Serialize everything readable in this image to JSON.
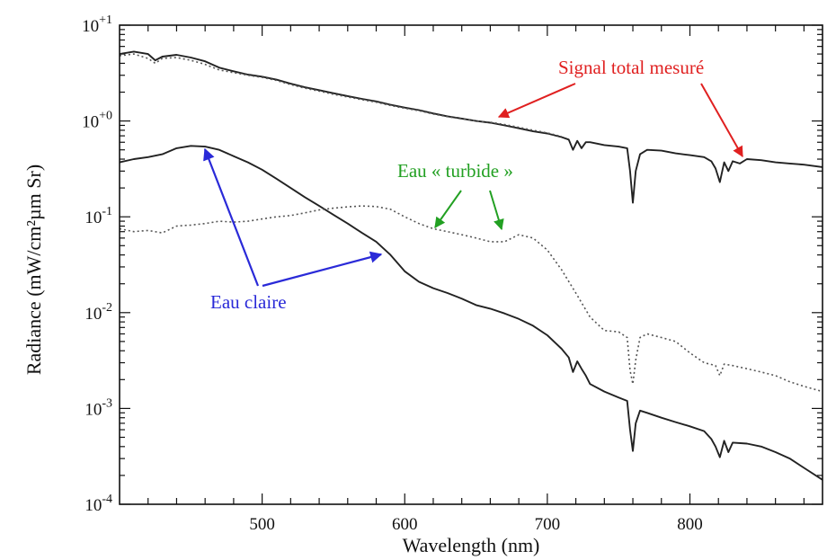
{
  "chart_data": {
    "type": "line",
    "title": "",
    "xlabel": "Wavelength (nm)",
    "ylabel": "Radiance  (mW/cm²µm Sr)",
    "xlim": [
      400,
      893
    ],
    "ylim": [
      0.0001,
      10
    ],
    "yscale": "log",
    "grid": false,
    "x_tick_labels": [
      {
        "value": 500,
        "text": "500"
      },
      {
        "value": 600,
        "text": "600"
      },
      {
        "value": 700,
        "text": "700"
      },
      {
        "value": 800,
        "text": "800"
      }
    ],
    "y_tick_labels": [
      {
        "value": 10,
        "base": "10",
        "exp": "+1"
      },
      {
        "value": 1,
        "base": "10",
        "exp": "+0"
      },
      {
        "value": 0.1,
        "base": "10",
        "exp": "-1"
      },
      {
        "value": 0.01,
        "base": "10",
        "exp": "-2"
      },
      {
        "value": 0.001,
        "base": "10",
        "exp": "-3"
      },
      {
        "value": 0.0001,
        "base": "10",
        "exp": "-4"
      }
    ],
    "series": [
      {
        "key": "total_solid",
        "style": "solid",
        "color": "#222222",
        "points": [
          [
            400,
            5.0
          ],
          [
            410,
            5.3
          ],
          [
            420,
            5.0
          ],
          [
            425,
            4.3
          ],
          [
            430,
            4.7
          ],
          [
            440,
            4.9
          ],
          [
            450,
            4.6
          ],
          [
            460,
            4.2
          ],
          [
            470,
            3.6
          ],
          [
            480,
            3.3
          ],
          [
            490,
            3.05
          ],
          [
            500,
            2.9
          ],
          [
            510,
            2.7
          ],
          [
            520,
            2.45
          ],
          [
            530,
            2.25
          ],
          [
            540,
            2.1
          ],
          [
            550,
            1.95
          ],
          [
            560,
            1.82
          ],
          [
            570,
            1.7
          ],
          [
            580,
            1.6
          ],
          [
            590,
            1.48
          ],
          [
            600,
            1.38
          ],
          [
            610,
            1.3
          ],
          [
            620,
            1.2
          ],
          [
            630,
            1.12
          ],
          [
            640,
            1.06
          ],
          [
            650,
            1.0
          ],
          [
            660,
            0.96
          ],
          [
            670,
            0.9
          ],
          [
            680,
            0.84
          ],
          [
            690,
            0.78
          ],
          [
            700,
            0.74
          ],
          [
            710,
            0.68
          ],
          [
            715,
            0.64
          ],
          [
            718,
            0.5
          ],
          [
            721,
            0.62
          ],
          [
            724,
            0.52
          ],
          [
            727,
            0.6
          ],
          [
            730,
            0.6
          ],
          [
            740,
            0.56
          ],
          [
            750,
            0.54
          ],
          [
            756,
            0.52
          ],
          [
            758,
            0.3
          ],
          [
            760,
            0.14
          ],
          [
            762,
            0.3
          ],
          [
            765,
            0.45
          ],
          [
            770,
            0.5
          ],
          [
            780,
            0.49
          ],
          [
            790,
            0.46
          ],
          [
            800,
            0.44
          ],
          [
            810,
            0.42
          ],
          [
            815,
            0.38
          ],
          [
            818,
            0.32
          ],
          [
            821,
            0.23
          ],
          [
            824,
            0.37
          ],
          [
            827,
            0.3
          ],
          [
            830,
            0.38
          ],
          [
            835,
            0.36
          ],
          [
            840,
            0.4
          ],
          [
            850,
            0.39
          ],
          [
            860,
            0.37
          ],
          [
            870,
            0.36
          ],
          [
            880,
            0.35
          ],
          [
            893,
            0.33
          ]
        ]
      },
      {
        "key": "total_dotted",
        "style": "dotted",
        "color": "#555555",
        "points": [
          [
            400,
            4.8
          ],
          [
            410,
            5.0
          ],
          [
            420,
            4.5
          ],
          [
            425,
            4.0
          ],
          [
            430,
            4.5
          ],
          [
            440,
            4.6
          ],
          [
            450,
            4.3
          ],
          [
            460,
            3.9
          ],
          [
            470,
            3.4
          ],
          [
            480,
            3.2
          ],
          [
            490,
            3.0
          ],
          [
            500,
            2.85
          ],
          [
            510,
            2.65
          ],
          [
            520,
            2.4
          ],
          [
            530,
            2.2
          ],
          [
            540,
            2.05
          ],
          [
            550,
            1.9
          ],
          [
            560,
            1.78
          ],
          [
            570,
            1.67
          ],
          [
            580,
            1.57
          ],
          [
            590,
            1.45
          ],
          [
            600,
            1.36
          ],
          [
            610,
            1.28
          ],
          [
            620,
            1.18
          ],
          [
            630,
            1.11
          ],
          [
            640,
            1.05
          ],
          [
            650,
            1.0
          ],
          [
            660,
            0.97
          ],
          [
            670,
            0.92
          ],
          [
            680,
            0.86
          ],
          [
            690,
            0.8
          ],
          [
            700,
            0.75
          ],
          [
            710,
            0.69
          ]
        ]
      },
      {
        "key": "clear_water",
        "style": "solid",
        "color": "#222222",
        "points": [
          [
            400,
            0.37
          ],
          [
            410,
            0.4
          ],
          [
            420,
            0.42
          ],
          [
            430,
            0.45
          ],
          [
            440,
            0.52
          ],
          [
            450,
            0.55
          ],
          [
            460,
            0.54
          ],
          [
            470,
            0.5
          ],
          [
            480,
            0.43
          ],
          [
            490,
            0.37
          ],
          [
            500,
            0.31
          ],
          [
            510,
            0.25
          ],
          [
            520,
            0.2
          ],
          [
            530,
            0.16
          ],
          [
            540,
            0.13
          ],
          [
            550,
            0.105
          ],
          [
            560,
            0.085
          ],
          [
            570,
            0.068
          ],
          [
            580,
            0.055
          ],
          [
            590,
            0.04
          ],
          [
            600,
            0.027
          ],
          [
            610,
            0.021
          ],
          [
            620,
            0.018
          ],
          [
            630,
            0.016
          ],
          [
            640,
            0.014
          ],
          [
            650,
            0.012
          ],
          [
            660,
            0.011
          ],
          [
            670,
            0.0098
          ],
          [
            680,
            0.0086
          ],
          [
            690,
            0.0073
          ],
          [
            700,
            0.0058
          ],
          [
            710,
            0.0042
          ],
          [
            715,
            0.0034
          ],
          [
            718,
            0.0024
          ],
          [
            721,
            0.0031
          ],
          [
            724,
            0.0026
          ],
          [
            727,
            0.0022
          ],
          [
            730,
            0.0018
          ],
          [
            740,
            0.0015
          ],
          [
            750,
            0.0013
          ],
          [
            756,
            0.0012
          ],
          [
            758,
            0.0006
          ],
          [
            760,
            0.00036
          ],
          [
            762,
            0.0007
          ],
          [
            765,
            0.00095
          ],
          [
            770,
            0.0009
          ],
          [
            780,
            0.0008
          ],
          [
            790,
            0.00072
          ],
          [
            800,
            0.00065
          ],
          [
            810,
            0.00058
          ],
          [
            815,
            0.00048
          ],
          [
            818,
            0.0004
          ],
          [
            821,
            0.00031
          ],
          [
            824,
            0.00046
          ],
          [
            827,
            0.00035
          ],
          [
            830,
            0.00044
          ],
          [
            840,
            0.00043
          ],
          [
            850,
            0.0004
          ],
          [
            860,
            0.00035
          ],
          [
            870,
            0.0003
          ],
          [
            880,
            0.00024
          ],
          [
            893,
            0.00018
          ]
        ]
      },
      {
        "key": "turbid_water",
        "style": "dotted",
        "color": "#555555",
        "points": [
          [
            400,
            0.075
          ],
          [
            410,
            0.07
          ],
          [
            420,
            0.072
          ],
          [
            430,
            0.068
          ],
          [
            440,
            0.08
          ],
          [
            450,
            0.082
          ],
          [
            460,
            0.085
          ],
          [
            470,
            0.09
          ],
          [
            480,
            0.088
          ],
          [
            490,
            0.09
          ],
          [
            500,
            0.095
          ],
          [
            510,
            0.1
          ],
          [
            520,
            0.103
          ],
          [
            530,
            0.11
          ],
          [
            540,
            0.118
          ],
          [
            550,
            0.123
          ],
          [
            560,
            0.127
          ],
          [
            570,
            0.13
          ],
          [
            580,
            0.128
          ],
          [
            590,
            0.12
          ],
          [
            600,
            0.1
          ],
          [
            610,
            0.085
          ],
          [
            620,
            0.075
          ],
          [
            630,
            0.07
          ],
          [
            640,
            0.065
          ],
          [
            650,
            0.06
          ],
          [
            660,
            0.055
          ],
          [
            670,
            0.055
          ],
          [
            680,
            0.065
          ],
          [
            690,
            0.06
          ],
          [
            700,
            0.045
          ],
          [
            710,
            0.028
          ],
          [
            720,
            0.016
          ],
          [
            730,
            0.009
          ],
          [
            740,
            0.0065
          ],
          [
            750,
            0.0063
          ],
          [
            756,
            0.0055
          ],
          [
            758,
            0.0025
          ],
          [
            760,
            0.0018
          ],
          [
            762,
            0.0032
          ],
          [
            765,
            0.0055
          ],
          [
            770,
            0.006
          ],
          [
            780,
            0.0055
          ],
          [
            790,
            0.005
          ],
          [
            800,
            0.0038
          ],
          [
            810,
            0.003
          ],
          [
            818,
            0.0028
          ],
          [
            821,
            0.0022
          ],
          [
            824,
            0.0029
          ],
          [
            830,
            0.0028
          ],
          [
            840,
            0.0026
          ],
          [
            850,
            0.0024
          ],
          [
            860,
            0.0022
          ],
          [
            870,
            0.0019
          ],
          [
            880,
            0.0017
          ],
          [
            893,
            0.0015
          ]
        ]
      }
    ],
    "annotations": [
      {
        "key": "signal",
        "text": "Signal total mesuré",
        "color": "#e02020"
      },
      {
        "key": "turbid",
        "text": "Eau « turbide »",
        "color": "#22a022"
      },
      {
        "key": "clear",
        "text": "Eau claire",
        "color": "#2a2ad8"
      }
    ]
  }
}
